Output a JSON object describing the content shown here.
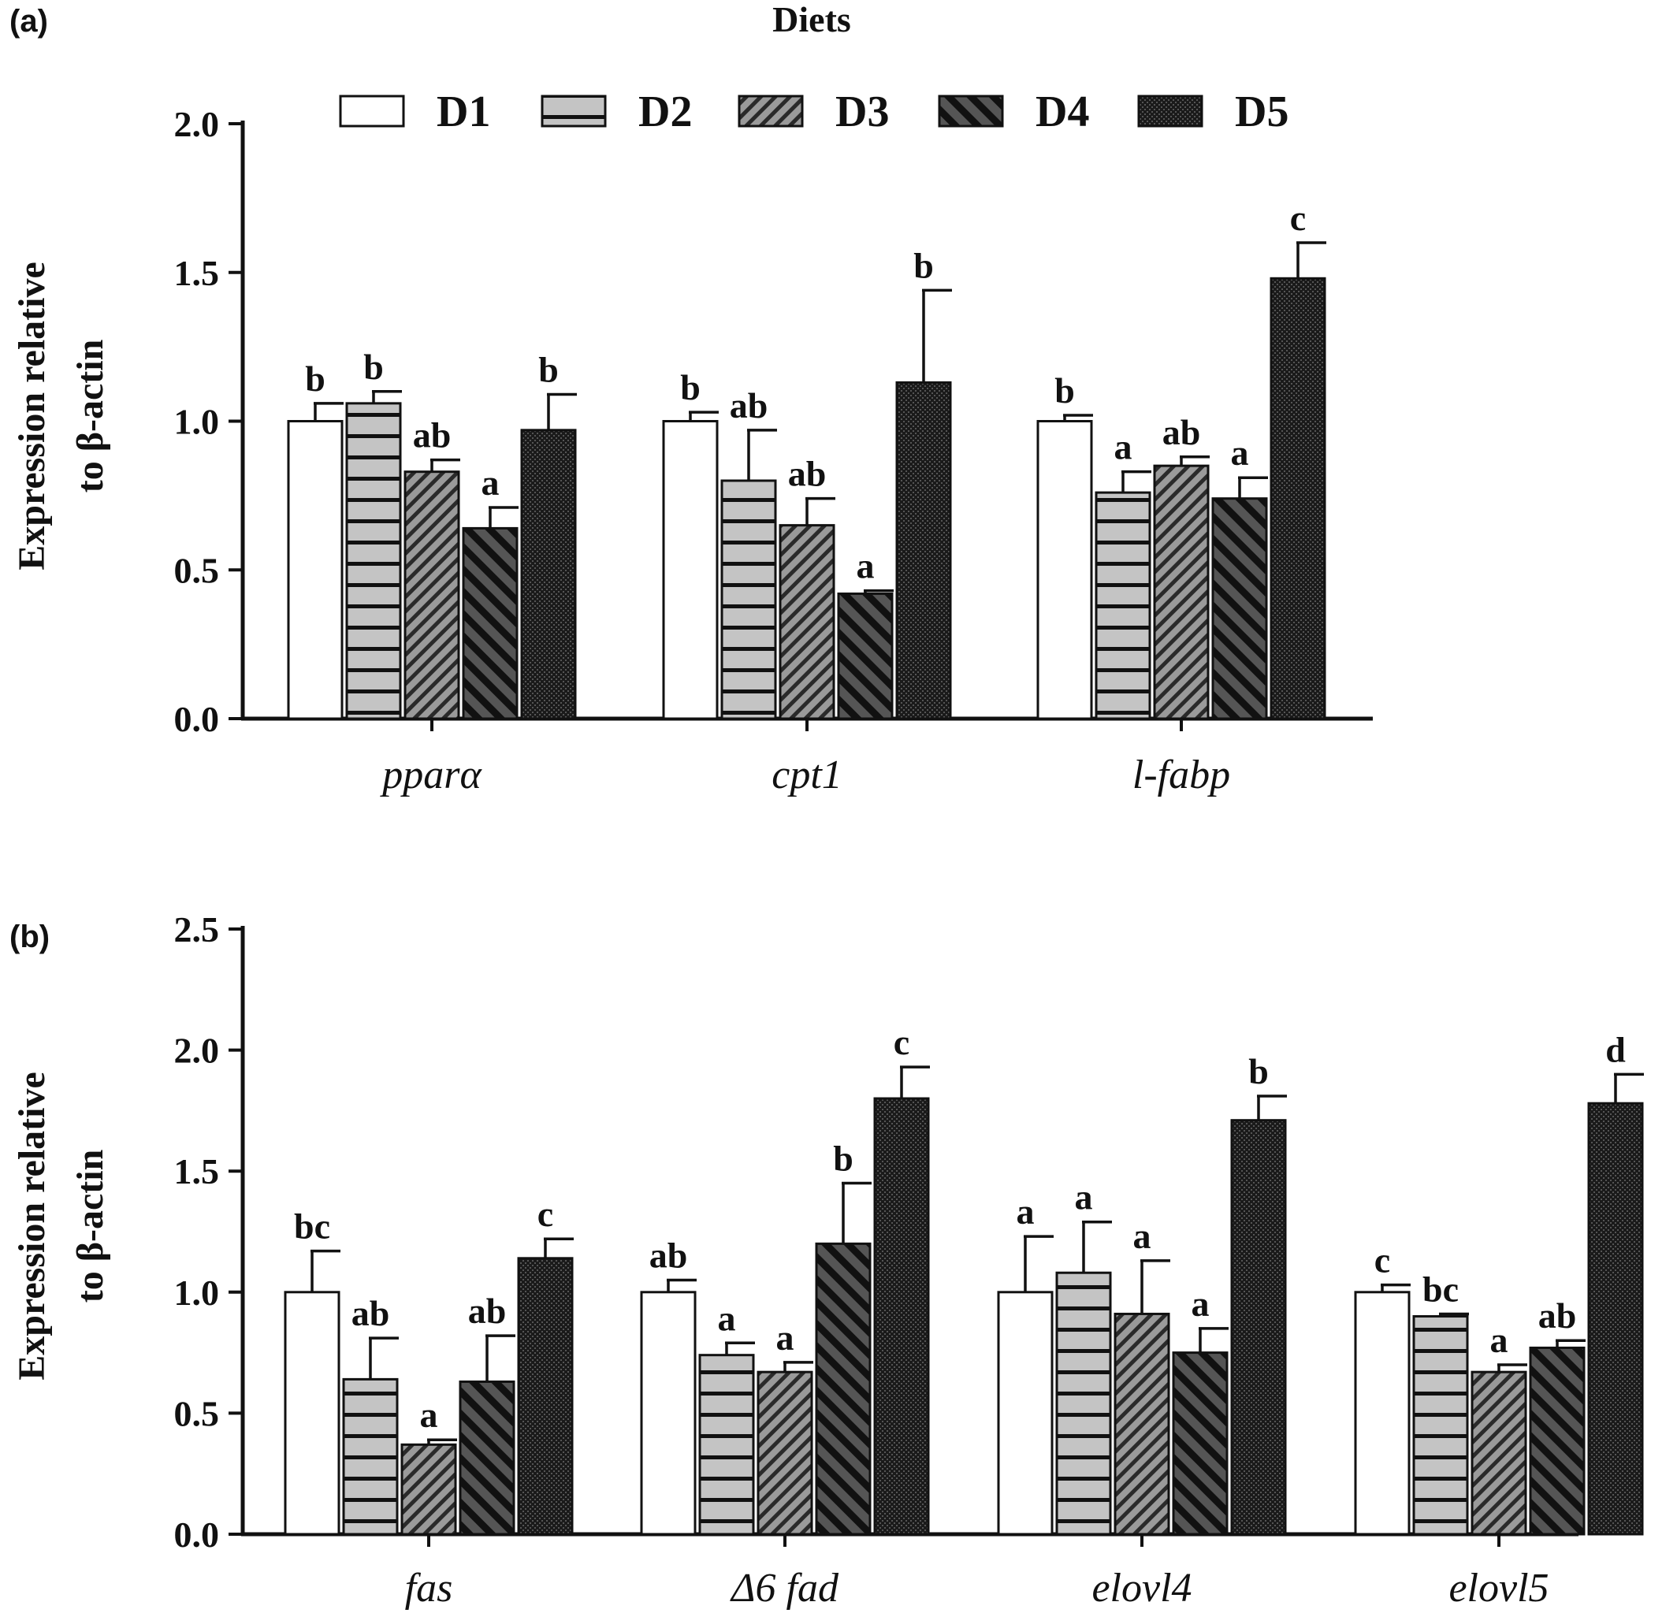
{
  "legend": {
    "title": "Diets",
    "entries": [
      {
        "name": "D1",
        "pattern": "open"
      },
      {
        "name": "D2",
        "pattern": "horizontal"
      },
      {
        "name": "D3",
        "pattern": "diag-down"
      },
      {
        "name": "D4",
        "pattern": "diag-up"
      },
      {
        "name": "D5",
        "pattern": "dense"
      }
    ]
  },
  "chart_data": [
    {
      "panel": "(a)",
      "type": "bar",
      "ylabel_line1": "Expression relative",
      "ylabel_line2": "to β-actin",
      "ylim": [
        0,
        2.0
      ],
      "yticks": [
        "0.0",
        "0.5",
        "1.0",
        "1.5",
        "2.0"
      ],
      "categories": [
        "pparα",
        "cpt1",
        "l-fabp"
      ],
      "series": [
        {
          "name": "D1",
          "values": [
            1.0,
            1.0,
            1.0
          ],
          "errors": [
            0.06,
            0.03,
            0.02
          ],
          "letters": [
            "b",
            "b",
            "b"
          ]
        },
        {
          "name": "D2",
          "values": [
            1.06,
            0.8,
            0.76
          ],
          "errors": [
            0.04,
            0.17,
            0.07
          ],
          "letters": [
            "b",
            "ab",
            "a"
          ]
        },
        {
          "name": "D3",
          "values": [
            0.83,
            0.65,
            0.85
          ],
          "errors": [
            0.04,
            0.09,
            0.03
          ],
          "letters": [
            "ab",
            "ab",
            "ab"
          ]
        },
        {
          "name": "D4",
          "values": [
            0.64,
            0.42,
            0.74
          ],
          "errors": [
            0.07,
            0.01,
            0.07
          ],
          "letters": [
            "a",
            "a",
            "a"
          ]
        },
        {
          "name": "D5",
          "values": [
            0.97,
            1.13,
            1.48
          ],
          "errors": [
            0.12,
            0.31,
            0.12
          ],
          "letters": [
            "b",
            "b",
            "c"
          ]
        }
      ]
    },
    {
      "panel": "(b)",
      "type": "bar",
      "ylabel_line1": "Expression relative",
      "ylabel_line2": "to β-actin",
      "ylim": [
        0,
        2.5
      ],
      "yticks": [
        "0.0",
        "0.5",
        "1.0",
        "1.5",
        "2.0",
        "2.5"
      ],
      "categories": [
        "fas",
        "Δ6 fad",
        "elovl4",
        "elovl5"
      ],
      "series": [
        {
          "name": "D1",
          "values": [
            1.0,
            1.0,
            1.0,
            1.0
          ],
          "errors": [
            0.17,
            0.05,
            0.23,
            0.03
          ],
          "letters": [
            "bc",
            "ab",
            "a",
            "c"
          ]
        },
        {
          "name": "D2",
          "values": [
            0.64,
            0.74,
            1.08,
            0.9
          ],
          "errors": [
            0.17,
            0.05,
            0.21,
            0.01
          ],
          "letters": [
            "ab",
            "a",
            "a",
            "bc"
          ]
        },
        {
          "name": "D3",
          "values": [
            0.37,
            0.67,
            0.91,
            0.67
          ],
          "errors": [
            0.02,
            0.04,
            0.22,
            0.03
          ],
          "letters": [
            "a",
            "a",
            "a",
            "a"
          ]
        },
        {
          "name": "D4",
          "values": [
            0.63,
            1.2,
            0.75,
            0.77
          ],
          "errors": [
            0.19,
            0.25,
            0.1,
            0.03
          ],
          "letters": [
            "ab",
            "b",
            "a",
            "ab"
          ]
        },
        {
          "name": "D5",
          "values": [
            1.14,
            1.8,
            1.71,
            1.78
          ],
          "errors": [
            0.08,
            0.13,
            0.1,
            0.12
          ],
          "letters": [
            "c",
            "c",
            "b",
            "d"
          ]
        }
      ]
    }
  ]
}
